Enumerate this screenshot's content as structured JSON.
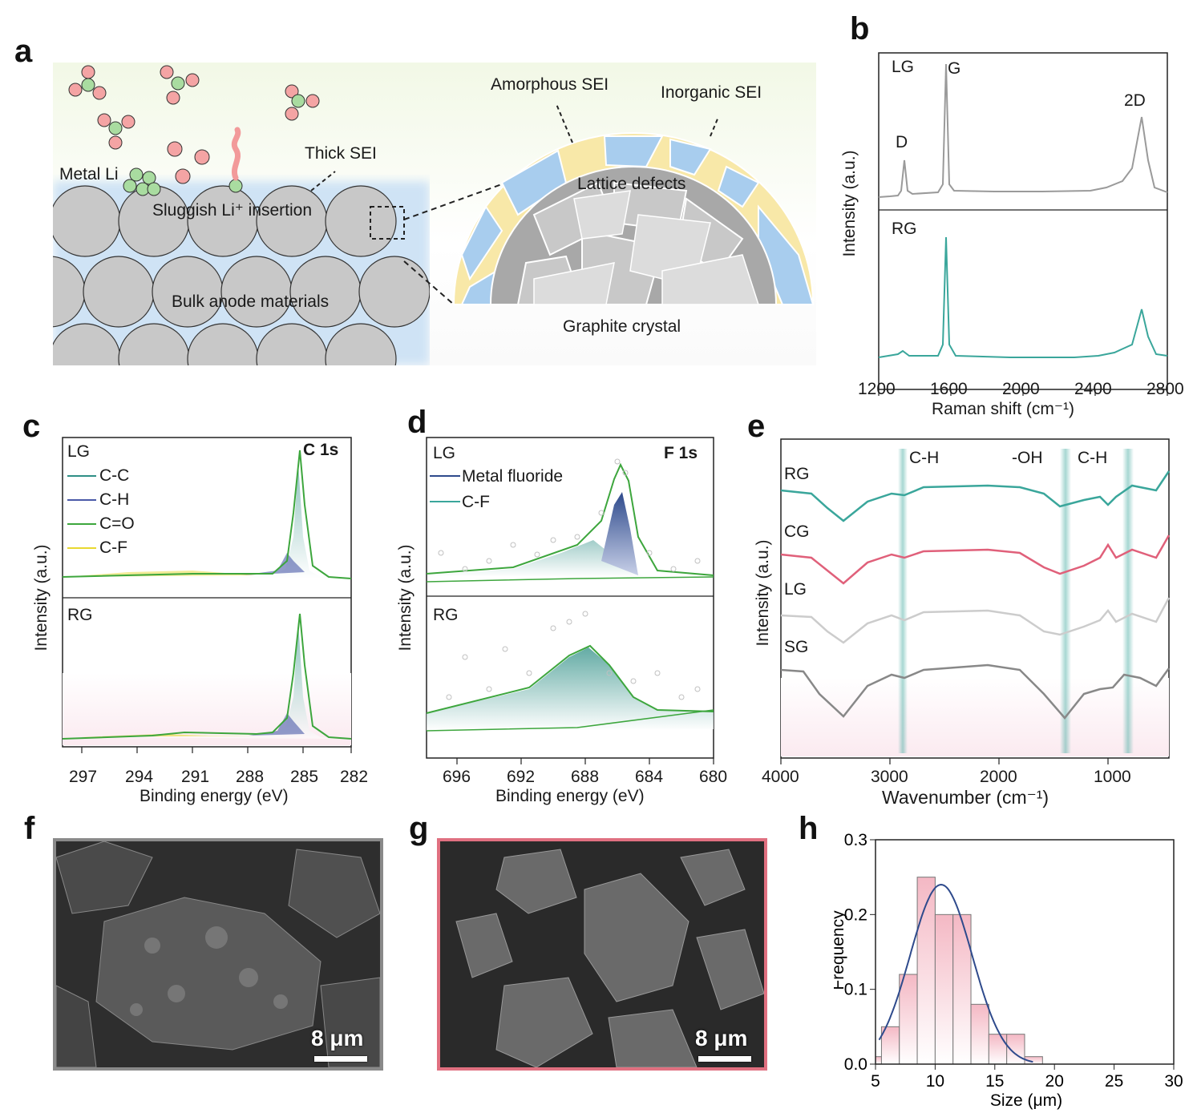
{
  "panels": {
    "a": {
      "letter": "a"
    },
    "b": {
      "letter": "b"
    },
    "c": {
      "letter": "c"
    },
    "d": {
      "letter": "d"
    },
    "e": {
      "letter": "e"
    },
    "f": {
      "letter": "f"
    },
    "g": {
      "letter": "g"
    },
    "h": {
      "letter": "h"
    }
  },
  "schematic": {
    "labels": {
      "metal_li": "Metal Li",
      "thick_sei": "Thick SEI",
      "sluggish": "Sluggish Li⁺ insertion",
      "bulk": "Bulk anode materials",
      "amorphous": "Amorphous SEI",
      "inorganic": "Inorganic SEI",
      "lattice": "Lattice defects",
      "graphite": "Graphite crystal"
    },
    "colors": {
      "particle": "#c8c8c8",
      "li_ion": "#f4a4a4",
      "solvent": "#a9dca0",
      "sei_blue": "#a8cdee",
      "sei_yellow": "#f8e8a8"
    }
  },
  "raman": {
    "xlabel": "Raman shift (cm⁻¹)",
    "ylabel": "Intensity (a.u.)",
    "xticks": [
      "1200",
      "1600",
      "2000",
      "2400",
      "2800"
    ],
    "top": {
      "label": "LG",
      "peaks": {
        "D": "D",
        "G": "G",
        "2D": "2D"
      },
      "color": "#9a9a9a"
    },
    "bottom": {
      "label": "RG",
      "color": "#3aa69b"
    }
  },
  "xps_c1s": {
    "title": "C 1s",
    "xlabel": "Binding energy (eV)",
    "ylabel": "Intensity (a.u.)",
    "xticks": [
      "297",
      "294",
      "291",
      "288",
      "285",
      "282"
    ],
    "top_label": "LG",
    "bottom_label": "RG",
    "legend": [
      {
        "name": "C-C",
        "color": "#2f8f86"
      },
      {
        "name": "C-H",
        "color": "#4a5aa8"
      },
      {
        "name": "C=O",
        "color": "#3da63d"
      },
      {
        "name": "C-F",
        "color": "#e8d830"
      }
    ]
  },
  "xps_f1s": {
    "title": "F 1s",
    "xlabel": "Binding energy (eV)",
    "ylabel": "Intensity (a.u.)",
    "xticks": [
      "696",
      "692",
      "688",
      "684",
      "680"
    ],
    "top_label": "LG",
    "bottom_label": "RG",
    "legend": [
      {
        "name": "Metal fluoride",
        "color": "#2e4a8c"
      },
      {
        "name": "C-F",
        "color": "#3aa69b"
      }
    ]
  },
  "ftir": {
    "xlabel": "Wavenumber (cm⁻¹)",
    "ylabel": "Intensity (a.u.)",
    "xticks": [
      "4000",
      "3000",
      "2000",
      "1000"
    ],
    "band_labels": [
      "C-H",
      "-OH",
      "C-H"
    ],
    "series": [
      {
        "name": "RG",
        "color": "#3aa69b"
      },
      {
        "name": "CG",
        "color": "#e0607a"
      },
      {
        "name": "LG",
        "color": "#cccccc"
      },
      {
        "name": "SG",
        "color": "#888888"
      }
    ]
  },
  "sem": {
    "f": {
      "scale": "8 μm",
      "border": "#8a8a8a"
    },
    "g": {
      "scale": "8 μm",
      "border": "#e07080"
    }
  },
  "chart_data": {
    "type": "bar",
    "xlabel": "Size (μm)",
    "ylabel": "Frequency",
    "xlim": [
      5,
      30
    ],
    "ylim": [
      0,
      0.3
    ],
    "xticks": [
      "5",
      "10",
      "15",
      "20",
      "25",
      "30"
    ],
    "yticks": [
      "0.0",
      "0.1",
      "0.2",
      "0.3"
    ],
    "bin_width": 1.5,
    "bins": [
      4.75,
      6.25,
      7.75,
      9.25,
      10.75,
      12.25,
      13.75,
      15.25,
      16.75,
      18.25
    ],
    "values": [
      0.01,
      0.05,
      0.12,
      0.25,
      0.2,
      0.2,
      0.08,
      0.04,
      0.04,
      0.01
    ],
    "fit": {
      "type": "gaussian",
      "mean": 10.5,
      "sigma": 2.6,
      "amplitude": 0.24,
      "color": "#2e4a8c"
    },
    "bar_color": "#f4b8c4"
  }
}
